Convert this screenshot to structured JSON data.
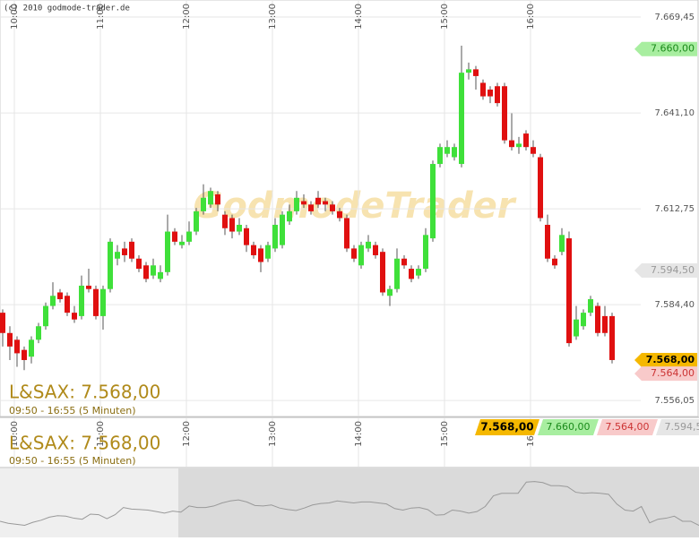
{
  "chart_data": {
    "type": "candlestick",
    "title": "L&SAX: 7.568,00",
    "subtitle": "09:50 - 16:55 (5 Minuten)",
    "copyright": "(c) 2010 godmode-trader.de",
    "watermark": "GodmodeTrader",
    "up_color": "#3fe03a",
    "down_color": "#e01010",
    "x": [
      "09:50",
      "09:55",
      "10:00",
      "10:05",
      "10:10",
      "10:15",
      "10:20",
      "10:25",
      "10:30",
      "10:35",
      "10:40",
      "10:45",
      "10:50",
      "10:55",
      "11:00",
      "11:05",
      "11:10",
      "11:15",
      "11:20",
      "11:25",
      "11:30",
      "11:35",
      "11:40",
      "11:45",
      "11:50",
      "11:55",
      "12:00",
      "12:05",
      "12:10",
      "12:15",
      "12:20",
      "12:25",
      "12:30",
      "12:35",
      "12:40",
      "12:45",
      "12:50",
      "12:55",
      "13:00",
      "13:05",
      "13:10",
      "13:15",
      "13:20",
      "13:25",
      "13:30",
      "13:35",
      "13:40",
      "13:45",
      "13:50",
      "13:55",
      "14:00",
      "14:05",
      "14:10",
      "14:15",
      "14:20",
      "14:25",
      "14:30",
      "14:35",
      "14:40",
      "14:45",
      "14:50",
      "14:55",
      "15:00",
      "15:05",
      "15:10",
      "15:15",
      "15:20",
      "15:25",
      "15:30",
      "15:35",
      "15:40",
      "15:45",
      "15:50",
      "15:55",
      "16:00",
      "16:05",
      "16:10",
      "16:15",
      "16:20",
      "16:25",
      "16:30",
      "16:35",
      "16:40",
      "16:45",
      "16:50",
      "16:55"
    ],
    "open": [
      7582,
      7576,
      7574,
      7571,
      7569,
      7574,
      7578,
      7584,
      7588,
      7587,
      7582,
      7581,
      7590,
      7589,
      7581,
      7589,
      7598,
      7601,
      7603,
      7598,
      7596,
      7593,
      7592,
      7594,
      7606,
      7602,
      7603,
      7606,
      7612,
      7614,
      7617,
      7611,
      7610,
      7606,
      7607,
      7602,
      7601,
      7598,
      7601,
      7602,
      7609,
      7612,
      7615,
      7614,
      7616,
      7615,
      7614,
      7612,
      7610,
      7601,
      7596,
      7601,
      7602,
      7600,
      7587,
      7589,
      7598,
      7595,
      7593,
      7595,
      7604,
      7626,
      7629,
      7628,
      7626,
      7653,
      7654,
      7650,
      7648,
      7649,
      7649,
      7633,
      7631,
      7635,
      7631,
      7628,
      7608,
      7598,
      7600,
      7604,
      7575,
      7578,
      7582,
      7584,
      7581,
      7581
    ],
    "high": [
      7583,
      7578,
      7575,
      7572,
      7575,
      7579,
      7585,
      7591,
      7589,
      7588,
      7584,
      7593,
      7595,
      7590,
      7590,
      7604,
      7602,
      7603,
      7604,
      7599,
      7597,
      7598,
      7596,
      7611,
      7607,
      7605,
      7609,
      7613,
      7620,
      7619,
      7618,
      7612,
      7611,
      7610,
      7608,
      7603,
      7602,
      7603,
      7610,
      7612,
      7614,
      7618,
      7617,
      7615,
      7618,
      7616,
      7615,
      7613,
      7611,
      7602,
      7603,
      7605,
      7603,
      7601,
      7590,
      7601,
      7599,
      7596,
      7596,
      7607,
      7627,
      7632,
      7633,
      7632,
      7661,
      7656,
      7655,
      7651,
      7649,
      7650,
      7650,
      7641,
      7634,
      7636,
      7633,
      7629,
      7611,
      7599,
      7607,
      7606,
      7584,
      7583,
      7587,
      7585,
      7584,
      7582
    ],
    "low": [
      7572,
      7568,
      7566,
      7565,
      7567,
      7573,
      7577,
      7583,
      7585,
      7581,
      7579,
      7580,
      7588,
      7580,
      7577,
      7588,
      7596,
      7597,
      7597,
      7594,
      7591,
      7592,
      7591,
      7593,
      7602,
      7601,
      7602,
      7605,
      7611,
      7613,
      7612,
      7605,
      7604,
      7605,
      7600,
      7598,
      7594,
      7597,
      7600,
      7601,
      7608,
      7611,
      7613,
      7611,
      7613,
      7612,
      7611,
      7609,
      7600,
      7597,
      7595,
      7600,
      7598,
      7587,
      7584,
      7588,
      7595,
      7591,
      7592,
      7594,
      7603,
      7625,
      7628,
      7627,
      7625,
      7651,
      7648,
      7645,
      7644,
      7643,
      7632,
      7630,
      7629,
      7630,
      7628,
      7609,
      7597,
      7595,
      7599,
      7572,
      7574,
      7577,
      7581,
      7575,
      7575,
      7567
    ],
    "close": [
      7576,
      7572,
      7570,
      7568,
      7574,
      7578,
      7584,
      7587,
      7586,
      7582,
      7580,
      7590,
      7589,
      7581,
      7589,
      7603,
      7600,
      7599,
      7598,
      7595,
      7592,
      7596,
      7594,
      7606,
      7603,
      7603,
      7606,
      7612,
      7616,
      7618,
      7614,
      7607,
      7606,
      7608,
      7602,
      7599,
      7597,
      7602,
      7608,
      7611,
      7612,
      7616,
      7614,
      7612,
      7614,
      7614,
      7612,
      7610,
      7601,
      7598,
      7602,
      7603,
      7599,
      7588,
      7589,
      7598,
      7596,
      7592,
      7595,
      7605,
      7626,
      7631,
      7631,
      7631,
      7653,
      7654,
      7652,
      7646,
      7646,
      7644,
      7633,
      7631,
      7632,
      7631,
      7629,
      7610,
      7598,
      7596,
      7605,
      7573,
      7580,
      7582,
      7586,
      7576,
      7576,
      7568
    ],
    "ylim": [
      7551.3,
      7674.5
    ],
    "yticks": [
      {
        "value": 7556.05,
        "label": "7.556,05"
      },
      {
        "value": 7584.4,
        "label": "7.584,40"
      },
      {
        "value": 7612.75,
        "label": "7.612,75"
      },
      {
        "value": 7641.1,
        "label": "7.641,10"
      },
      {
        "value": 7669.45,
        "label": "7.669,45"
      }
    ],
    "xticks": [
      "10:00",
      "11:00",
      "12:00",
      "13:00",
      "14:00",
      "15:00",
      "16:00"
    ],
    "grid": true,
    "price_labels": [
      {
        "value": 7568,
        "label": "7.568,00",
        "color": "#f5b800"
      },
      {
        "value": 7660,
        "label": "7.660,00",
        "color": "#a8eea0"
      },
      {
        "value": 7564,
        "label": "7.564,00",
        "color": "#f8caca"
      },
      {
        "value": 7594.5,
        "label": "7.594,50",
        "color": "#e6e6e6"
      }
    ]
  }
}
